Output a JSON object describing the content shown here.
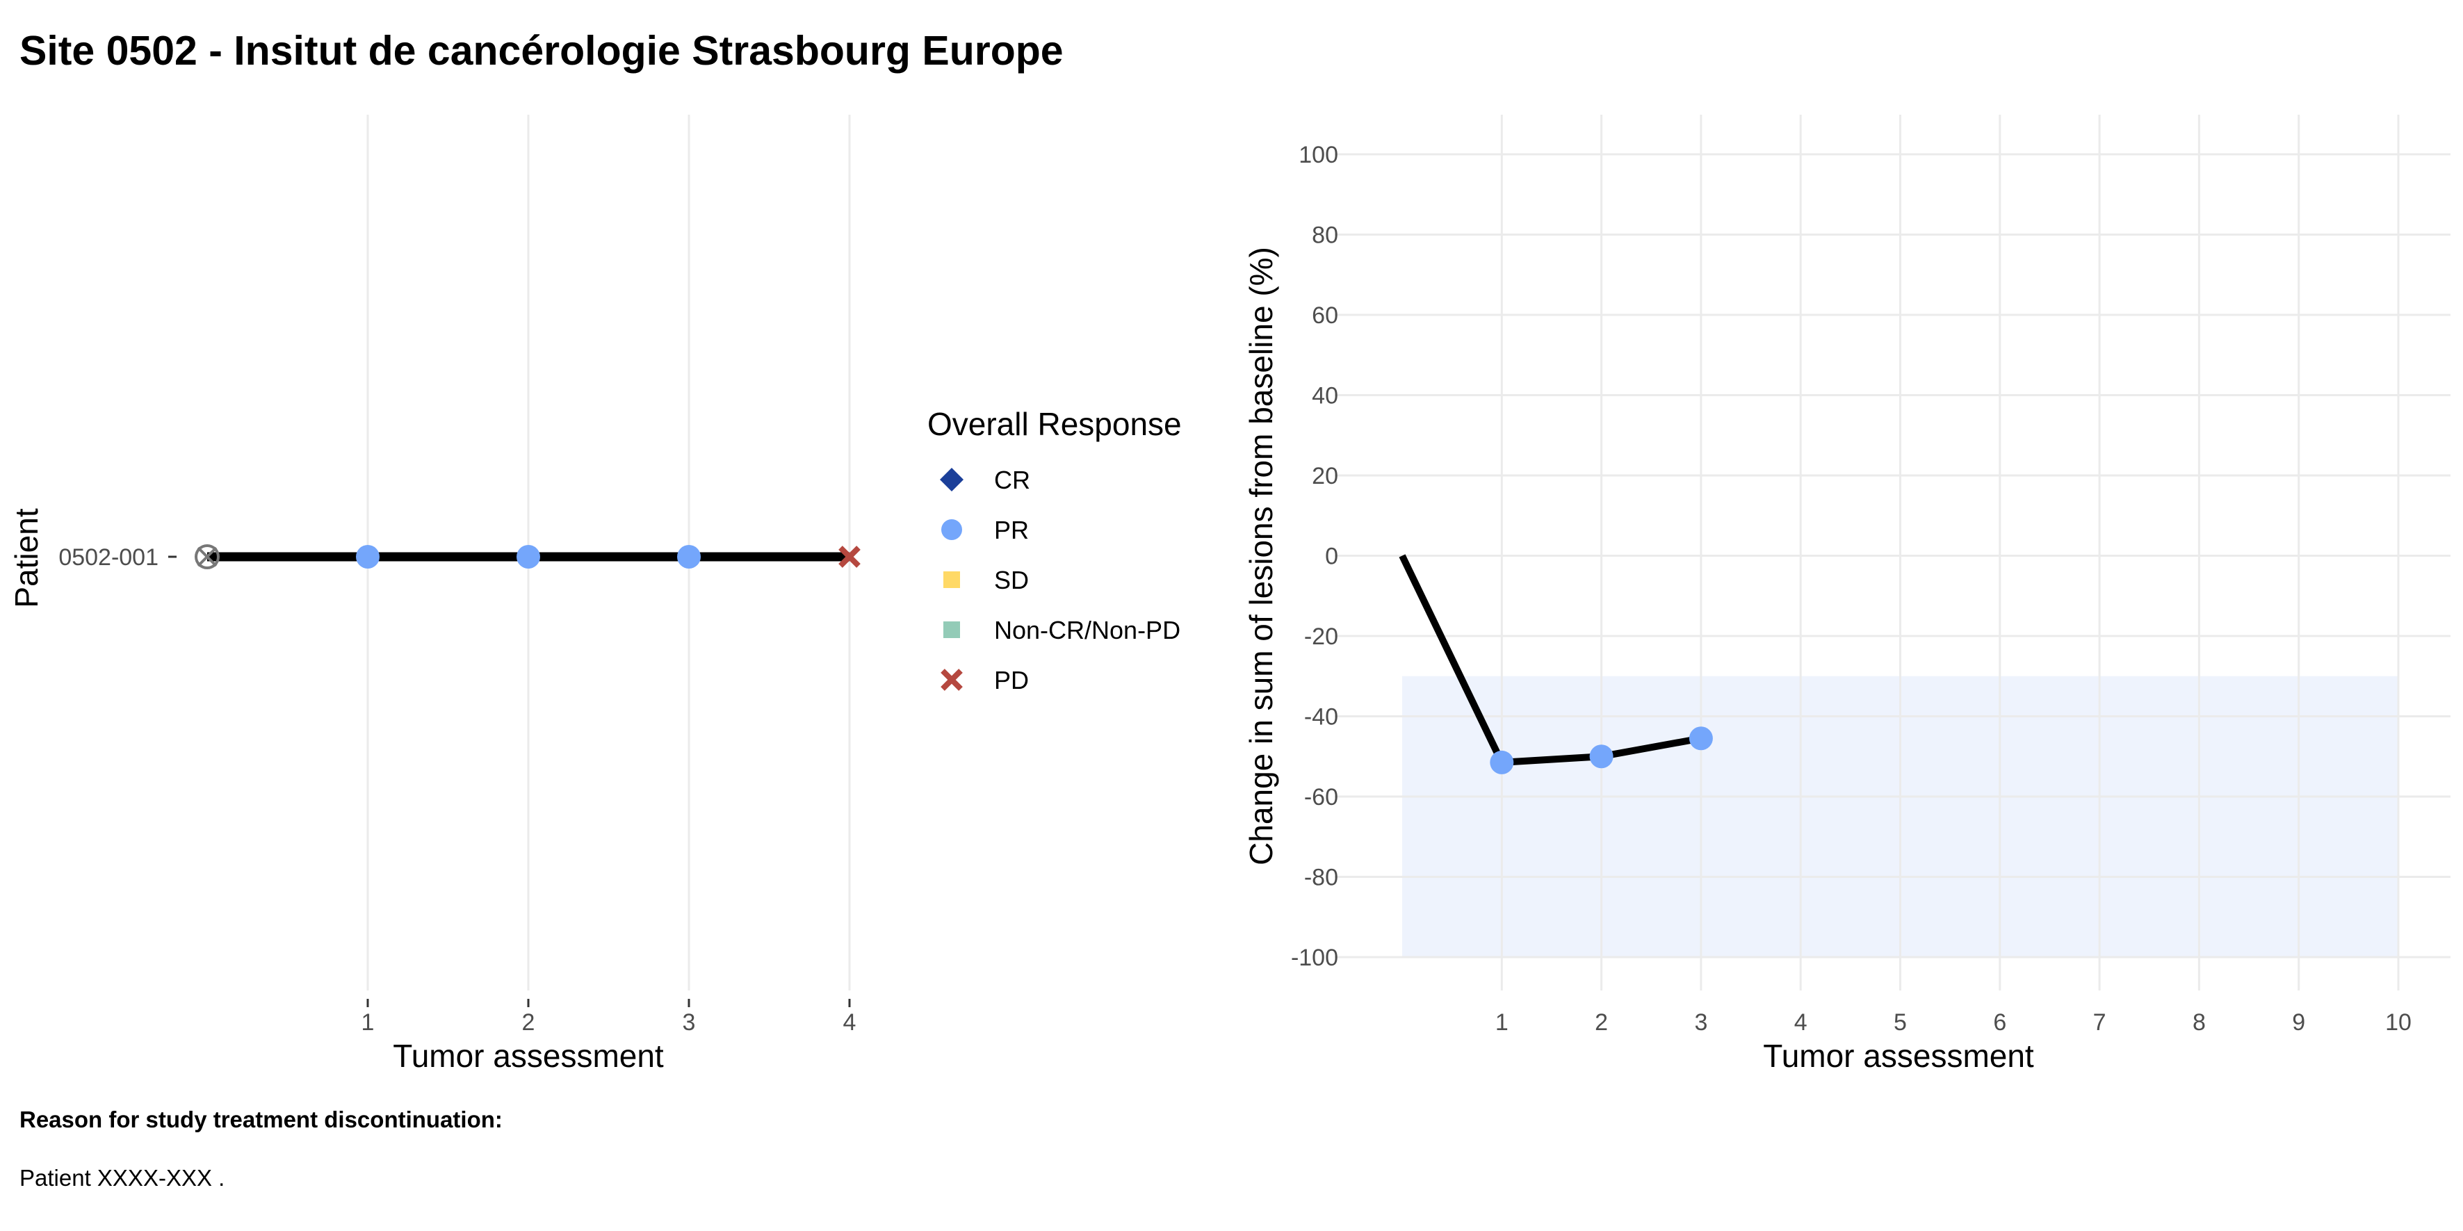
{
  "title": "Site 0502 - Insitut de cancérologie Strasbourg Europe",
  "footer": {
    "reason_heading": "Reason for study treatment discontinuation:",
    "reason_text": "Patient XXXX-XXX ."
  },
  "colors": {
    "CR": "#1b3f99",
    "PR": "#74a6fb",
    "SD": "#ffd966",
    "NonCRNonPD": "#93cbb7",
    "PD": "#b5483f",
    "line": "#000000",
    "grid": "#ebebeb",
    "shade": "#eef3fd"
  },
  "legend": {
    "title": "Overall Response",
    "items": [
      {
        "label": "CR",
        "shape": "diamond",
        "color": "#1b3f99"
      },
      {
        "label": "PR",
        "shape": "circle",
        "color": "#74a6fb"
      },
      {
        "label": "SD",
        "shape": "square",
        "color": "#ffd966"
      },
      {
        "label": "Non-CR/Non-PD",
        "shape": "square",
        "color": "#93cbb7"
      },
      {
        "label": "PD",
        "shape": "cross",
        "color": "#b5483f"
      }
    ]
  },
  "chart_data": [
    {
      "type": "scatter",
      "name": "response-timeline",
      "xlabel": "Tumor assessment",
      "ylabel": "Patient",
      "x_ticks": [
        1,
        2,
        3,
        4
      ],
      "xlim": [
        0,
        4
      ],
      "categories": [
        "0502-001"
      ],
      "series": [
        {
          "patient": "0502-001",
          "baseline_marker": "circle-x",
          "points": [
            {
              "x": 1,
              "response": "PR"
            },
            {
              "x": 2,
              "response": "PR"
            },
            {
              "x": 3,
              "response": "PR"
            },
            {
              "x": 4,
              "response": "PD"
            }
          ]
        }
      ],
      "grid": true
    },
    {
      "type": "line",
      "name": "lesion-change",
      "xlabel": "Tumor assessment",
      "ylabel": "Change in sum of lesions from baseline (%)",
      "x_ticks": [
        1,
        2,
        3,
        4,
        5,
        6,
        7,
        8,
        9,
        10
      ],
      "y_ticks": [
        100,
        80,
        60,
        40,
        20,
        0,
        -20,
        -40,
        -60,
        -80,
        -100
      ],
      "xlim": [
        0,
        10
      ],
      "ylim": [
        -100,
        100
      ],
      "shaded_region": {
        "x": [
          0,
          10
        ],
        "y": [
          -100,
          -30
        ]
      },
      "x": [
        0,
        1,
        2,
        3
      ],
      "y": [
        0,
        -51.5,
        -50,
        -45.5
      ],
      "point_responses": [
        "",
        "PR",
        "PR",
        "PR"
      ],
      "grid": true
    }
  ]
}
